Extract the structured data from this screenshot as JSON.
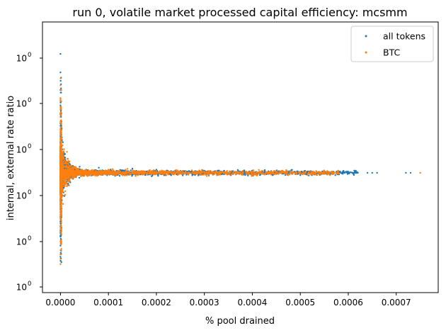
{
  "chart_data": {
    "type": "scatter",
    "title": "run 0, volatile market processed capital efficiency: mcsmm",
    "xlabel": "% pool drained",
    "ylabel": "internal, external rate ratio",
    "xlim": [
      -3.75e-05,
      0.0007875
    ],
    "y_scale": "log",
    "x_ticks": [
      "0.0000",
      "0.0001",
      "0.0002",
      "0.0003",
      "0.0004",
      "0.0005",
      "0.0006",
      "0.0007"
    ],
    "x_tick_values": [
      0,
      0.0001,
      0.0002,
      0.0003,
      0.0004,
      0.0005,
      0.0006,
      0.0007
    ],
    "y_ticks": [
      {
        "base": "10",
        "exp": "0"
      },
      {
        "base": "10",
        "exp": "0"
      },
      {
        "base": "10",
        "exp": "0"
      },
      {
        "base": "10",
        "exp": "0"
      },
      {
        "base": "10",
        "exp": "0"
      },
      {
        "base": "10",
        "exp": "0"
      }
    ],
    "legend": {
      "position": "top-right"
    },
    "series": [
      {
        "name": "all tokens",
        "color": "#1f77b4",
        "points": [
          [
            0.0,
            3.1
          ],
          [
            0.0,
            2.6
          ],
          [
            0.0,
            2.2
          ],
          [
            0.0,
            1.9
          ],
          [
            0.0,
            1.75
          ],
          [
            0.0,
            1.6
          ],
          [
            0.0,
            0.45
          ],
          [
            0.0,
            0.5
          ],
          [
            0.0,
            0.55
          ],
          [
            0.0,
            0.6
          ],
          [
            1e-06,
            0.65
          ],
          [
            3e-06,
            1.4
          ],
          [
            4e-06,
            1.25
          ],
          [
            6e-06,
            1.18
          ],
          [
            1e-05,
            1.12
          ],
          [
            2e-05,
            1.08
          ],
          [
            4e-05,
            1.06
          ],
          [
            8e-05,
            1.05
          ],
          [
            0.00015,
            1.04
          ],
          [
            0.0002,
            1.03
          ],
          [
            0.0003,
            1.02
          ],
          [
            0.0004,
            1.02
          ],
          [
            0.00045,
            1.0
          ],
          [
            0.0005,
            1.0
          ],
          [
            0.00052,
            1.0
          ],
          [
            0.00055,
            1.0
          ],
          [
            0.00058,
            1.0
          ],
          [
            0.0006,
            1.0
          ],
          [
            0.00062,
            1.0
          ],
          [
            0.00064,
            1.0
          ],
          [
            0.00065,
            1.0
          ],
          [
            0.00066,
            1.0
          ],
          [
            0.00072,
            1.0
          ],
          [
            0.00073,
            1.0
          ]
        ]
      },
      {
        "name": "BTC",
        "color": "#ff7f0e",
        "points": [
          [
            0.0,
            2.3
          ],
          [
            0.0,
            2.0
          ],
          [
            0.0,
            1.7
          ],
          [
            0.0,
            0.42
          ],
          [
            0.0,
            0.46
          ],
          [
            0.0,
            0.52
          ],
          [
            2e-06,
            1.3
          ],
          [
            5e-06,
            1.2
          ],
          [
            1e-05,
            1.1
          ],
          [
            3e-05,
            1.06
          ],
          [
            0.0001,
            1.03
          ],
          [
            0.0002,
            1.02
          ],
          [
            0.0003,
            1.01
          ],
          [
            0.0004,
            1.0
          ],
          [
            0.00045,
            1.0
          ],
          [
            0.0005,
            1.0
          ],
          [
            0.00055,
            1.0
          ],
          [
            0.00075,
            1.0
          ]
        ]
      }
    ]
  }
}
